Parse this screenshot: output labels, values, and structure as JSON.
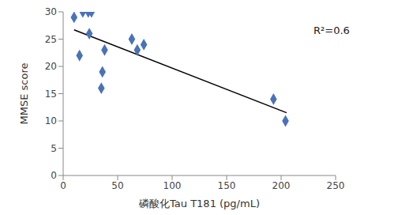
{
  "chart_data": {
    "type": "scatter",
    "x_label": "磷酸化Tau T181 (pg/mL)",
    "y_label": "MMSE score",
    "annotation": "R²=0.6",
    "x": [
      10,
      18,
      23,
      26,
      24,
      15,
      38,
      36,
      35,
      63,
      68,
      74,
      193,
      204
    ],
    "values": [
      29,
      30,
      30,
      30,
      26,
      22,
      23,
      19,
      16,
      25,
      23,
      24,
      14,
      10
    ],
    "color": "#4a72b8",
    "marker": "diamond",
    "trend_line": {
      "x": [
        10,
        205
      ],
      "values": [
        26.7,
        11.5
      ],
      "color": "#000000"
    },
    "xlim": [
      0,
      250
    ],
    "xticks": [
      0,
      50,
      100,
      150,
      200,
      250
    ],
    "ylim": [
      0,
      30
    ],
    "yticks": [
      0,
      5,
      10,
      15,
      20,
      25,
      30
    ],
    "grid": false
  }
}
